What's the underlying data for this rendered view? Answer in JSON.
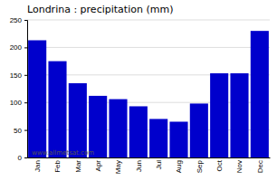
{
  "chart_data": {
    "type": "bar",
    "title": "Londrina : precipitation (mm)",
    "categories": [
      "Jan",
      "Feb",
      "Mar",
      "Apr",
      "May",
      "Jun",
      "Jul",
      "Aug",
      "Sep",
      "Oct",
      "Nov",
      "Dec"
    ],
    "values": [
      213,
      175,
      135,
      112,
      106,
      93,
      70,
      65,
      98,
      153,
      153,
      230
    ],
    "color": "#0000cc",
    "ylim": [
      0,
      250
    ],
    "yticks": [
      0,
      50,
      100,
      150,
      200,
      250
    ],
    "grid": true,
    "annotations": [
      "www.allmetsat.com"
    ]
  }
}
